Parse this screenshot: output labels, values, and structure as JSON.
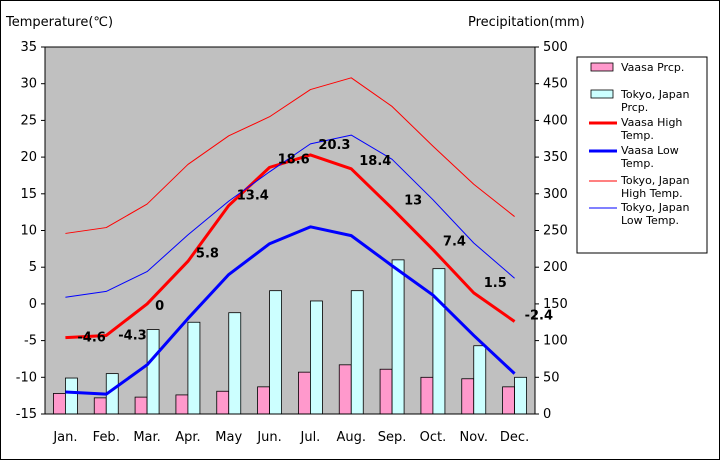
{
  "chart_data": {
    "type": "bar+line",
    "categories": [
      "Jan.",
      "Feb.",
      "Mar.",
      "Apr.",
      "May",
      "Jun.",
      "Jul.",
      "Aug.",
      "Sep.",
      "Oct.",
      "Nov.",
      "Dec."
    ],
    "y_left": {
      "label": "Temperature(℃)",
      "min": -15,
      "max": 35,
      "step": 5
    },
    "y_right": {
      "label": "Precipitation(mm)",
      "min": 0,
      "max": 500,
      "step": 50
    },
    "grid": false,
    "legend_position": "right",
    "bars": [
      {
        "name": "Vaasa Prcp.",
        "color": "#ff99cc",
        "values": [
          28,
          22,
          23,
          26,
          31,
          37,
          57,
          67,
          61,
          50,
          48,
          37
        ]
      },
      {
        "name": "Tokyo, Japan Prcp.",
        "color": "#ccffff",
        "values": [
          49,
          55,
          115,
          125,
          138,
          168,
          154,
          168,
          210,
          198,
          93,
          50
        ]
      }
    ],
    "lines": [
      {
        "name": "Vaasa High Temp.",
        "color": "#ff0000",
        "width": 3,
        "values": [
          -4.6,
          -4.3,
          0,
          5.8,
          13.4,
          18.6,
          20.3,
          18.4,
          13,
          7.4,
          1.5,
          -2.4
        ],
        "labels": [
          "-4.6",
          "-4.3",
          "0",
          "5.8",
          "13.4",
          "18.6",
          "20.3",
          "18.4",
          "13",
          "7.4",
          "1.5",
          "-2.4"
        ]
      },
      {
        "name": "Vaasa Low Temp.",
        "color": "#0000ff",
        "width": 3,
        "values": [
          -12,
          -12.3,
          -8.3,
          -2,
          4,
          8.2,
          10.5,
          9.3,
          5.2,
          1.2,
          -4.3,
          -9.5
        ]
      },
      {
        "name": "Tokyo, Japan High Temp.",
        "color": "#ff0000",
        "width": 1,
        "values": [
          9.6,
          10.4,
          13.6,
          19,
          22.9,
          25.5,
          29.2,
          30.8,
          26.9,
          21.5,
          16.3,
          11.9
        ]
      },
      {
        "name": "Tokyo, Japan Low Temp.",
        "color": "#0000ff",
        "width": 1,
        "values": [
          0.9,
          1.7,
          4.4,
          9.4,
          14,
          18,
          21.8,
          23,
          19.7,
          14.2,
          8.3,
          3.5
        ]
      }
    ],
    "legend_lines": {
      "Vaasa Prcp.": [
        "Vaasa Prcp."
      ],
      "Tokyo, Japan Prcp.": [
        "Tokyo, Japan",
        "Prcp."
      ],
      "Vaasa High Temp.": [
        "Vaasa High",
        "Temp."
      ],
      "Vaasa Low Temp.": [
        "Vaasa Low",
        "Temp."
      ],
      "Tokyo, Japan High Temp.": [
        "Tokyo, Japan",
        "High Temp."
      ],
      "Tokyo, Japan Low Temp.": [
        "Tokyo, Japan",
        "Low Temp."
      ]
    }
  }
}
